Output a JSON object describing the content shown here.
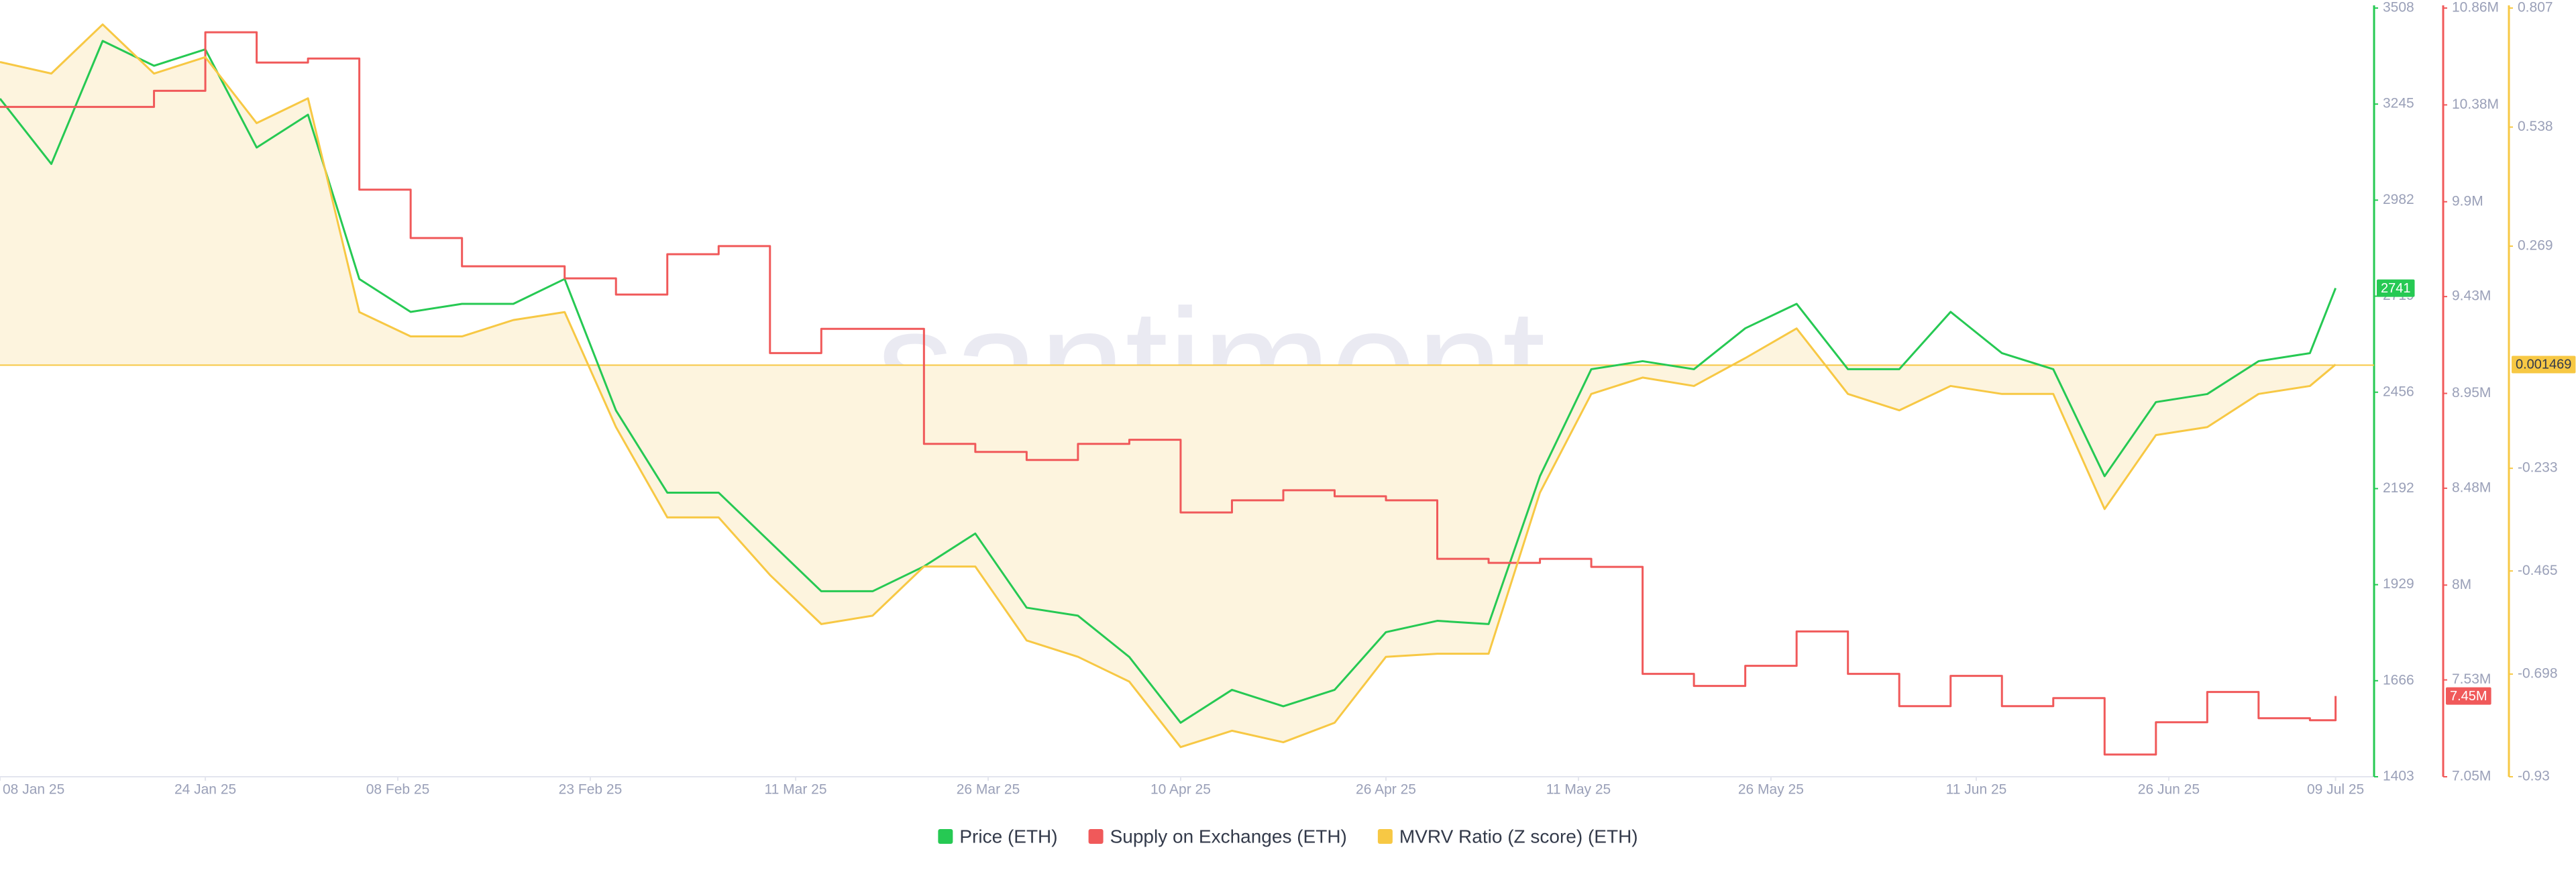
{
  "chart_data": {
    "type": "line",
    "watermark": "santiment.",
    "x": [
      "2025-01-08",
      "2025-01-12",
      "2025-01-16",
      "2025-01-20",
      "2025-01-24",
      "2025-01-28",
      "2025-02-01",
      "2025-02-05",
      "2025-02-09",
      "2025-02-13",
      "2025-02-17",
      "2025-02-21",
      "2025-02-25",
      "2025-03-01",
      "2025-03-05",
      "2025-03-09",
      "2025-03-13",
      "2025-03-17",
      "2025-03-21",
      "2025-03-25",
      "2025-03-29",
      "2025-04-02",
      "2025-04-06",
      "2025-04-10",
      "2025-04-14",
      "2025-04-18",
      "2025-04-22",
      "2025-04-26",
      "2025-04-30",
      "2025-05-04",
      "2025-05-08",
      "2025-05-12",
      "2025-05-16",
      "2025-05-20",
      "2025-05-24",
      "2025-05-28",
      "2025-06-01",
      "2025-06-05",
      "2025-06-09",
      "2025-06-13",
      "2025-06-17",
      "2025-06-21",
      "2025-06-25",
      "2025-06-29",
      "2025-07-03",
      "2025-07-07",
      "2025-07-09"
    ],
    "xlim": [
      "2025-01-08",
      "2025-07-12"
    ],
    "xticks": [
      {
        "value": "2025-01-08",
        "label": "08 Jan 25"
      },
      {
        "value": "2025-01-24",
        "label": "24 Jan 25"
      },
      {
        "value": "2025-02-08",
        "label": "08 Feb 25"
      },
      {
        "value": "2025-02-23",
        "label": "23 Feb 25"
      },
      {
        "value": "2025-03-11",
        "label": "11 Mar 25"
      },
      {
        "value": "2025-03-26",
        "label": "26 Mar 25"
      },
      {
        "value": "2025-04-10",
        "label": "10 Apr 25"
      },
      {
        "value": "2025-04-26",
        "label": "26 Apr 25"
      },
      {
        "value": "2025-05-11",
        "label": "11 May 25"
      },
      {
        "value": "2025-05-26",
        "label": "26 May 25"
      },
      {
        "value": "2025-06-11",
        "label": "11 Jun 25"
      },
      {
        "value": "2025-06-26",
        "label": "26 Jun 25"
      },
      {
        "value": "2025-07-09",
        "label": "09 Jul 25"
      }
    ],
    "ylim": [
      1403,
      3508
    ],
    "yticks": [
      1403,
      1666,
      1929,
      2192,
      2456,
      2719,
      2982,
      3245,
      3508
    ],
    "y2lim": [
      7050000,
      10860000
    ],
    "y2ticks": [
      {
        "value": 7050000,
        "label": "7.05M"
      },
      {
        "value": 7530000,
        "label": "7.53M"
      },
      {
        "value": 8000000,
        "label": "8M"
      },
      {
        "value": 8480000,
        "label": "8.48M"
      },
      {
        "value": 8950000,
        "label": "8.95M"
      },
      {
        "value": 9430000,
        "label": "9.43M"
      },
      {
        "value": 9900000,
        "label": "9.9M"
      },
      {
        "value": 10380000,
        "label": "10.38M"
      },
      {
        "value": 10860000,
        "label": "10.86M"
      }
    ],
    "y3lim": [
      -0.93,
      0.807
    ],
    "y3ticks": [
      -0.93,
      -0.698,
      -0.465,
      -0.233,
      0.269,
      0.538,
      0.807
    ],
    "series": [
      {
        "name": "Price (ETH)",
        "color": "#26c953",
        "axis": "y",
        "values": [
          3260,
          3081,
          3418,
          3350,
          3395,
          3126,
          3216,
          2766,
          2676,
          2698,
          2698,
          2766,
          2406,
          2181,
          2181,
          2046,
          1911,
          1911,
          1979,
          2069,
          1866,
          1844,
          1731,
          1551,
          1641,
          1596,
          1641,
          1799,
          1830,
          1821,
          2226,
          2519,
          2541,
          2519,
          2631,
          2698,
          2519,
          2519,
          2676,
          2563,
          2519,
          2226,
          2429,
          2451,
          2541,
          2563,
          2741
        ]
      },
      {
        "name": "Supply on Exchanges (ETH)",
        "color": "#f0595a",
        "axis": "y2",
        "step": true,
        "values": [
          10370000,
          10370000,
          10370000,
          10450000,
          10740000,
          10590000,
          10610000,
          9960000,
          9720000,
          9580000,
          9580000,
          9520000,
          9440000,
          9640000,
          9680000,
          9150000,
          9270000,
          9270000,
          8700000,
          8660000,
          8620000,
          8700000,
          8720000,
          8360000,
          8420000,
          8470000,
          8440000,
          8420000,
          8130000,
          8110000,
          8130000,
          8090000,
          7560000,
          7500000,
          7600000,
          7770000,
          7560000,
          7400000,
          7550000,
          7400000,
          7440000,
          7160000,
          7320000,
          7470000,
          7340000,
          7330000,
          7450000
        ],
        "value_labels": [
          null,
          null,
          null,
          null,
          null,
          null,
          null,
          null,
          null,
          null,
          null,
          null,
          null,
          null,
          null,
          null,
          null,
          null,
          null,
          null,
          null,
          null,
          null,
          null,
          null,
          null,
          null,
          null,
          null,
          null,
          null,
          null,
          null,
          null,
          null,
          null,
          null,
          null,
          null,
          null,
          null,
          null,
          null,
          null,
          null,
          null,
          "7.45M"
        ]
      },
      {
        "name": "MVRV Ratio (Z score) (ETH)",
        "color": "#f7c844",
        "axis": "y3",
        "fill": "#fdf4de",
        "values": [
          0.685,
          0.659,
          0.77,
          0.659,
          0.696,
          0.547,
          0.603,
          0.12,
          0.065,
          0.065,
          0.102,
          0.12,
          -0.14,
          -0.344,
          -0.344,
          -0.474,
          -0.585,
          -0.566,
          -0.455,
          -0.455,
          -0.622,
          -0.659,
          -0.715,
          -0.863,
          -0.826,
          -0.852,
          -0.808,
          -0.659,
          -0.652,
          -0.652,
          -0.288,
          -0.065,
          -0.028,
          -0.047,
          0.016,
          0.083,
          -0.065,
          -0.102,
          -0.047,
          -0.065,
          -0.065,
          -0.325,
          -0.158,
          -0.14,
          -0.065,
          -0.047,
          0.001469
        ]
      }
    ]
  }
}
